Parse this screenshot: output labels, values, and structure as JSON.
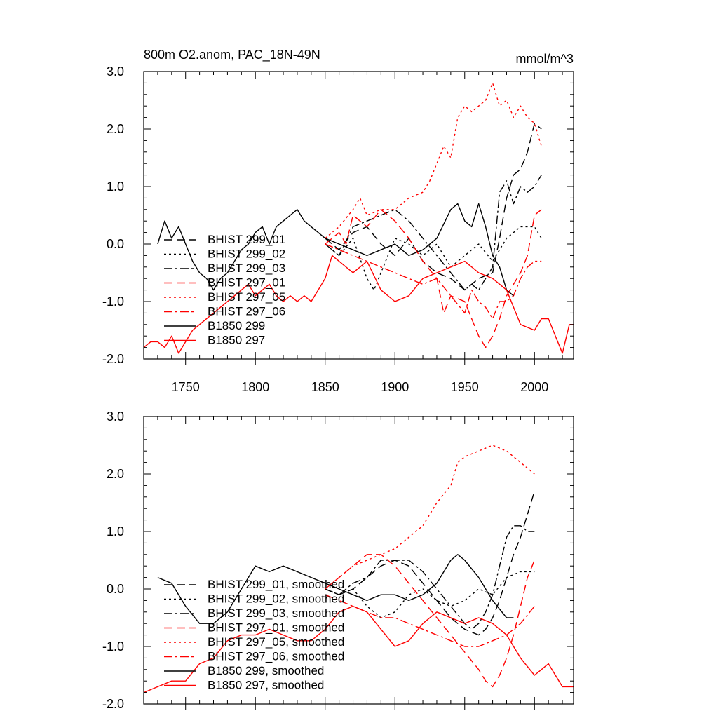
{
  "chart_data": [
    {
      "type": "line",
      "title": "800m O2.anom, PAC_18N-49N",
      "units": "mmol/m^3",
      "xlim": [
        1720,
        2028
      ],
      "ylim": [
        -2.0,
        3.0
      ],
      "x_ticks": [
        1750,
        1800,
        1850,
        1900,
        1950,
        2000
      ],
      "x_tick_labels": [
        "1750",
        "1800",
        "1850",
        "1900",
        "1950",
        "2000"
      ],
      "y_ticks": [
        -2.0,
        -1.0,
        0.0,
        1.0,
        2.0,
        3.0
      ],
      "y_tick_labels": [
        "-2.0",
        "-1.0",
        "0.0",
        "1.0",
        "2.0",
        "3.0"
      ],
      "series": [
        {
          "name": "BHIST 299_01",
          "color": "#000000",
          "dash": "dash",
          "x": [
            1850,
            1860,
            1870,
            1880,
            1890,
            1900,
            1910,
            1920,
            1930,
            1940,
            1950,
            1960,
            1970,
            1975,
            1980,
            1985,
            1990,
            1995,
            2000,
            2005
          ],
          "y": [
            0.1,
            -0.1,
            0.2,
            0.3,
            0.0,
            -0.2,
            0.1,
            -0.3,
            -0.5,
            -0.6,
            -0.8,
            -0.6,
            -0.5,
            0.1,
            0.8,
            1.2,
            1.3,
            1.6,
            2.1,
            2.0
          ]
        },
        {
          "name": "BHIST 299_02",
          "color": "#000000",
          "dash": "dot",
          "x": [
            1850,
            1860,
            1870,
            1880,
            1885,
            1890,
            1900,
            1910,
            1920,
            1930,
            1940,
            1950,
            1960,
            1970,
            1980,
            1990,
            2000,
            2005
          ],
          "y": [
            0.0,
            -0.2,
            0.1,
            -0.6,
            -0.8,
            -0.5,
            0.1,
            0.0,
            -0.2,
            0.0,
            -0.4,
            -0.2,
            0.0,
            -0.3,
            0.1,
            0.3,
            0.3,
            0.1
          ]
        },
        {
          "name": "BHIST 299_03",
          "color": "#000000",
          "dash": "dashdot",
          "x": [
            1850,
            1860,
            1870,
            1880,
            1890,
            1900,
            1910,
            1920,
            1930,
            1940,
            1950,
            1955,
            1960,
            1965,
            1970,
            1975,
            1980,
            1985,
            1990,
            1995,
            2000,
            2005
          ],
          "y": [
            0.0,
            -0.2,
            0.3,
            0.4,
            0.5,
            0.6,
            0.4,
            0.1,
            -0.2,
            -0.5,
            -0.8,
            -0.7,
            -0.8,
            -0.6,
            -0.4,
            0.9,
            1.1,
            0.7,
            1.0,
            0.9,
            1.0,
            1.2
          ]
        },
        {
          "name": "BHIST 297_01",
          "color": "#ff0000",
          "dash": "dash",
          "x": [
            1850,
            1860,
            1865,
            1870,
            1880,
            1890,
            1900,
            1910,
            1920,
            1930,
            1935,
            1940,
            1950,
            1955,
            1960,
            1965,
            1970,
            1975,
            1980,
            1985,
            1990,
            1995,
            2000,
            2005
          ],
          "y": [
            0.0,
            0.2,
            0.0,
            0.5,
            0.3,
            0.6,
            0.4,
            0.1,
            -0.3,
            -0.6,
            -1.2,
            -0.9,
            -1.0,
            -1.3,
            -1.6,
            -1.8,
            -1.6,
            -1.3,
            -0.9,
            -0.7,
            -0.5,
            -0.2,
            0.5,
            0.6
          ]
        },
        {
          "name": "BHIST 297_05",
          "color": "#ff0000",
          "dash": "dot",
          "x": [
            1850,
            1860,
            1870,
            1875,
            1880,
            1890,
            1900,
            1910,
            1920,
            1925,
            1930,
            1935,
            1940,
            1945,
            1950,
            1955,
            1960,
            1965,
            1970,
            1975,
            1980,
            1985,
            1990,
            1995,
            2000,
            2005
          ],
          "y": [
            0.1,
            0.3,
            0.6,
            0.8,
            0.5,
            0.6,
            0.6,
            0.8,
            0.9,
            1.1,
            1.4,
            1.7,
            1.5,
            2.2,
            2.4,
            2.3,
            2.4,
            2.5,
            2.8,
            2.4,
            2.5,
            2.2,
            2.4,
            2.2,
            2.1,
            1.7
          ]
        },
        {
          "name": "BHIST 297_06",
          "color": "#ff0000",
          "dash": "dashdot",
          "x": [
            1850,
            1860,
            1870,
            1880,
            1890,
            1900,
            1910,
            1920,
            1930,
            1940,
            1950,
            1955,
            1960,
            1965,
            1970,
            1975,
            1980,
            1985,
            1990,
            1995,
            2000,
            2005
          ],
          "y": [
            0.0,
            -0.1,
            -0.2,
            -0.3,
            -0.4,
            -0.5,
            -0.6,
            -0.7,
            -0.6,
            -0.9,
            -1.2,
            -0.8,
            -1.0,
            -1.1,
            -1.3,
            -1.0,
            -1.0,
            -0.9,
            -0.6,
            -0.4,
            -0.3,
            -0.3
          ]
        },
        {
          "name": "B1850 299",
          "color": "#000000",
          "dash": "solid",
          "x": [
            1730,
            1735,
            1740,
            1745,
            1750,
            1755,
            1760,
            1765,
            1770,
            1775,
            1780,
            1785,
            1790,
            1795,
            1800,
            1805,
            1810,
            1815,
            1820,
            1825,
            1830,
            1835,
            1840,
            1845,
            1850,
            1860,
            1870,
            1880,
            1890,
            1900,
            1910,
            1920,
            1930,
            1940,
            1945,
            1950,
            1955,
            1960,
            1965,
            1970,
            1975,
            1980,
            1985
          ],
          "y": [
            0.0,
            0.4,
            0.1,
            0.3,
            0.0,
            -0.3,
            -0.5,
            -0.6,
            -0.8,
            -0.6,
            -0.5,
            -0.3,
            -0.1,
            0.0,
            0.2,
            0.3,
            0.0,
            0.3,
            0.4,
            0.5,
            0.6,
            0.4,
            0.3,
            0.2,
            0.1,
            0.0,
            -0.1,
            -0.2,
            -0.1,
            0.0,
            -0.2,
            -0.1,
            0.1,
            0.6,
            0.7,
            0.4,
            0.3,
            0.7,
            0.3,
            -0.2,
            -0.4,
            -0.8,
            -0.9
          ]
        },
        {
          "name": "B1850 297",
          "color": "#ff0000",
          "dash": "solid",
          "x": [
            1720,
            1725,
            1730,
            1735,
            1740,
            1745,
            1750,
            1755,
            1760,
            1765,
            1770,
            1775,
            1780,
            1785,
            1790,
            1795,
            1800,
            1805,
            1810,
            1815,
            1820,
            1825,
            1830,
            1835,
            1840,
            1845,
            1850,
            1855,
            1860,
            1870,
            1880,
            1890,
            1900,
            1910,
            1920,
            1930,
            1940,
            1950,
            1960,
            1970,
            1980,
            1990,
            2000,
            2005,
            2010,
            2015,
            2020,
            2025,
            2028
          ],
          "y": [
            -1.8,
            -1.7,
            -1.7,
            -1.8,
            -1.6,
            -1.9,
            -1.7,
            -1.5,
            -1.4,
            -1.3,
            -1.2,
            -1.1,
            -1.0,
            -0.9,
            -0.8,
            -0.7,
            -0.9,
            -0.8,
            -0.7,
            -0.9,
            -1.0,
            -0.9,
            -1.0,
            -0.9,
            -1.0,
            -0.8,
            -0.6,
            -0.2,
            -0.3,
            -0.5,
            -0.3,
            -0.8,
            -1.0,
            -0.9,
            -0.6,
            -0.5,
            -0.4,
            -0.3,
            -0.5,
            -0.6,
            -0.8,
            -1.4,
            -1.5,
            -1.3,
            -1.3,
            -1.6,
            -1.9,
            -1.4,
            -1.4
          ]
        }
      ]
    },
    {
      "type": "line",
      "title": "",
      "xlim": [
        1720,
        2028
      ],
      "ylim": [
        -2.0,
        3.0
      ],
      "y_ticks": [
        -2.0,
        -1.0,
        0.0,
        1.0,
        2.0,
        3.0
      ],
      "y_tick_labels": [
        "-2.0",
        "-1.0",
        "0.0",
        "1.0",
        "2.0",
        "3.0"
      ],
      "series": [
        {
          "name": "BHIST 299_01, smoothed",
          "color": "#000000",
          "dash": "dash",
          "x": [
            1850,
            1860,
            1870,
            1880,
            1890,
            1900,
            1910,
            1920,
            1930,
            1940,
            1950,
            1960,
            1965,
            1970,
            1975,
            1980,
            1985,
            1990,
            1995,
            2000
          ],
          "y": [
            0.0,
            -0.1,
            0.0,
            0.2,
            0.4,
            0.5,
            0.4,
            0.1,
            -0.2,
            -0.5,
            -0.7,
            -0.8,
            -0.7,
            -0.5,
            -0.2,
            0.2,
            0.6,
            0.9,
            1.3,
            1.7
          ]
        },
        {
          "name": "BHIST 299_02, smoothed",
          "color": "#000000",
          "dash": "dot",
          "x": [
            1850,
            1860,
            1870,
            1880,
            1890,
            1900,
            1910,
            1920,
            1930,
            1940,
            1950,
            1960,
            1970,
            1980,
            1990,
            2000
          ],
          "y": [
            0.0,
            -0.1,
            0.0,
            -0.3,
            -0.5,
            -0.4,
            -0.1,
            0.0,
            -0.2,
            -0.3,
            -0.2,
            0.0,
            -0.1,
            0.2,
            0.3,
            0.3
          ]
        },
        {
          "name": "BHIST 299_03, smoothed",
          "color": "#000000",
          "dash": "dashdot",
          "x": [
            1850,
            1860,
            1870,
            1880,
            1890,
            1900,
            1910,
            1920,
            1930,
            1940,
            1950,
            1955,
            1960,
            1965,
            1970,
            1975,
            1980,
            1985,
            1990,
            1995,
            2000
          ],
          "y": [
            0.0,
            -0.1,
            0.1,
            0.2,
            0.5,
            0.5,
            0.5,
            0.3,
            0.0,
            -0.3,
            -0.6,
            -0.7,
            -0.6,
            -0.4,
            -0.1,
            0.4,
            0.9,
            1.1,
            1.1,
            1.0,
            1.0
          ]
        },
        {
          "name": "BHIST 297_01, smoothed",
          "color": "#ff0000",
          "dash": "dash",
          "x": [
            1850,
            1860,
            1870,
            1880,
            1890,
            1900,
            1910,
            1920,
            1930,
            1940,
            1950,
            1960,
            1965,
            1970,
            1975,
            1980,
            1985,
            1990,
            1995,
            2000
          ],
          "y": [
            0.0,
            0.2,
            0.4,
            0.6,
            0.6,
            0.4,
            0.1,
            -0.2,
            -0.5,
            -0.8,
            -1.1,
            -1.4,
            -1.6,
            -1.7,
            -1.5,
            -1.2,
            -0.8,
            -0.3,
            0.2,
            0.5
          ]
        },
        {
          "name": "BHIST 297_05, smoothed",
          "color": "#ff0000",
          "dash": "dot",
          "x": [
            1850,
            1860,
            1870,
            1880,
            1890,
            1900,
            1910,
            1920,
            1930,
            1940,
            1945,
            1950,
            1960,
            1970,
            1980,
            1990,
            2000
          ],
          "y": [
            0.0,
            0.2,
            0.4,
            0.5,
            0.6,
            0.7,
            0.9,
            1.1,
            1.5,
            1.8,
            2.2,
            2.3,
            2.4,
            2.5,
            2.4,
            2.2,
            2.0
          ]
        },
        {
          "name": "BHIST 297_06, smoothed",
          "color": "#ff0000",
          "dash": "dashdot",
          "x": [
            1850,
            1860,
            1870,
            1880,
            1890,
            1900,
            1910,
            1920,
            1930,
            1940,
            1950,
            1960,
            1970,
            1980,
            1990,
            2000
          ],
          "y": [
            -0.1,
            -0.2,
            -0.3,
            -0.4,
            -0.5,
            -0.5,
            -0.6,
            -0.7,
            -0.8,
            -0.9,
            -1.0,
            -1.0,
            -0.9,
            -0.8,
            -0.6,
            -0.3
          ]
        },
        {
          "name": "B1850 299, smoothed",
          "color": "#000000",
          "dash": "solid",
          "x": [
            1730,
            1740,
            1750,
            1760,
            1770,
            1780,
            1790,
            1800,
            1810,
            1820,
            1830,
            1840,
            1850,
            1860,
            1870,
            1880,
            1890,
            1900,
            1910,
            1920,
            1930,
            1940,
            1945,
            1950,
            1960,
            1970,
            1980,
            1985
          ],
          "y": [
            0.2,
            0.1,
            -0.3,
            -0.6,
            -0.6,
            -0.4,
            0.0,
            0.4,
            0.3,
            0.4,
            0.3,
            0.2,
            0.1,
            0.0,
            -0.1,
            -0.2,
            -0.1,
            -0.1,
            -0.2,
            -0.1,
            0.1,
            0.5,
            0.6,
            0.5,
            0.2,
            -0.2,
            -0.5,
            -0.5
          ]
        },
        {
          "name": "B1850 297, smoothed",
          "color": "#ff0000",
          "dash": "solid",
          "x": [
            1720,
            1730,
            1740,
            1750,
            1760,
            1770,
            1780,
            1790,
            1800,
            1810,
            1820,
            1830,
            1840,
            1850,
            1860,
            1870,
            1880,
            1890,
            1900,
            1910,
            1920,
            1930,
            1940,
            1950,
            1960,
            1970,
            1980,
            1990,
            2000,
            2010,
            2020,
            2028
          ],
          "y": [
            -1.8,
            -1.7,
            -1.6,
            -1.6,
            -1.3,
            -1.2,
            -0.9,
            -0.8,
            -0.8,
            -0.7,
            -0.8,
            -0.9,
            -0.9,
            -0.7,
            -0.4,
            -0.3,
            -0.4,
            -0.7,
            -1.0,
            -0.9,
            -0.6,
            -0.4,
            -0.5,
            -0.6,
            -0.5,
            -0.6,
            -0.8,
            -1.2,
            -1.5,
            -1.3,
            -1.7,
            -1.7
          ]
        }
      ]
    }
  ]
}
